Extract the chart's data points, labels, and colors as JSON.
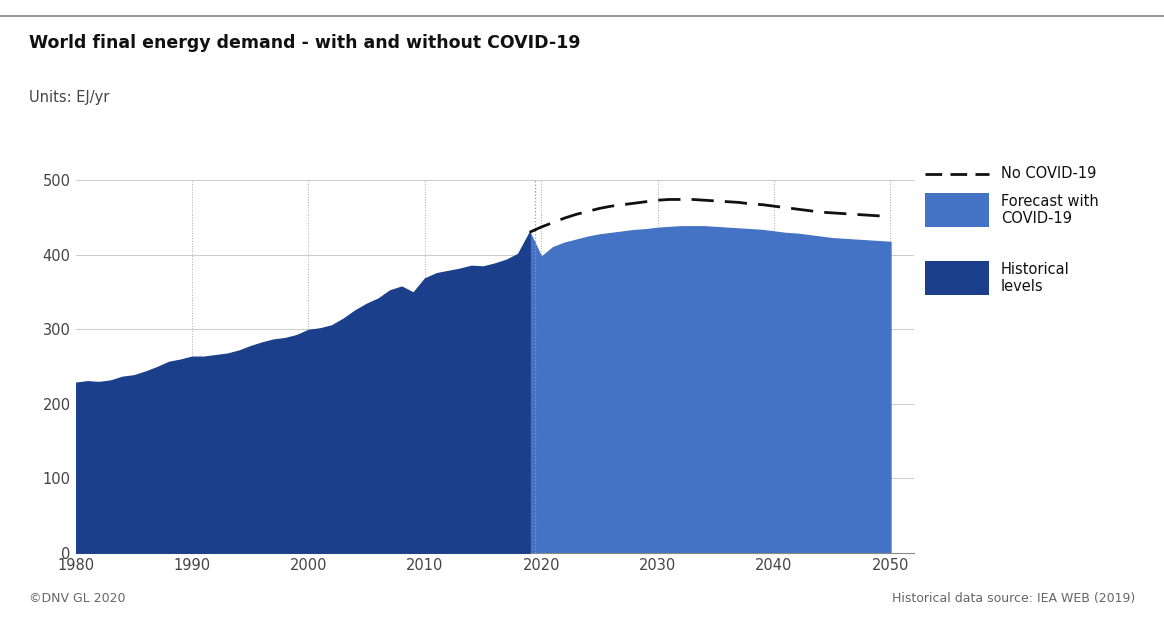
{
  "title": "World final energy demand - with and without COVID-19",
  "units_label": "Units: EJ/yr",
  "footer_left": "©DNV GL 2020",
  "footer_right": "Historical data source: IEA WEB (2019)",
  "background_color": "#ffffff",
  "hist_color": "#1b3f8b",
  "forecast_color": "#4472c4",
  "dashed_color": "#111111",
  "ylim": [
    0,
    500
  ],
  "xlim": [
    1980,
    2052
  ],
  "yticks": [
    0,
    100,
    200,
    300,
    400,
    500
  ],
  "xticks": [
    1980,
    1990,
    2000,
    2010,
    2020,
    2030,
    2040,
    2050
  ],
  "vline_x": 2019.5,
  "historical": {
    "years": [
      1980,
      1981,
      1982,
      1983,
      1984,
      1985,
      1986,
      1987,
      1988,
      1989,
      1990,
      1991,
      1992,
      1993,
      1994,
      1995,
      1996,
      1997,
      1998,
      1999,
      2000,
      2001,
      2002,
      2003,
      2004,
      2005,
      2006,
      2007,
      2008,
      2009,
      2010,
      2011,
      2012,
      2013,
      2014,
      2015,
      2016,
      2017,
      2018,
      2019
    ],
    "values": [
      228,
      230,
      229,
      231,
      236,
      238,
      243,
      249,
      256,
      259,
      263,
      263,
      265,
      267,
      271,
      277,
      282,
      286,
      288,
      292,
      299,
      301,
      305,
      314,
      325,
      334,
      341,
      352,
      357,
      349,
      368,
      375,
      378,
      381,
      385,
      384,
      388,
      393,
      401,
      430
    ]
  },
  "forecast_covid": {
    "years": [
      2019,
      2020,
      2021,
      2022,
      2023,
      2024,
      2025,
      2026,
      2027,
      2028,
      2029,
      2030,
      2031,
      2032,
      2033,
      2034,
      2035,
      2036,
      2037,
      2038,
      2039,
      2040,
      2041,
      2042,
      2043,
      2044,
      2045,
      2046,
      2047,
      2048,
      2049,
      2050
    ],
    "values": [
      430,
      397,
      410,
      416,
      420,
      424,
      427,
      429,
      431,
      433,
      434,
      436,
      437,
      438,
      438,
      438,
      437,
      436,
      435,
      434,
      433,
      431,
      429,
      428,
      426,
      424,
      422,
      421,
      420,
      419,
      418,
      417
    ]
  },
  "no_covid": {
    "years": [
      2019,
      2020,
      2021,
      2022,
      2023,
      2024,
      2025,
      2026,
      2027,
      2028,
      2029,
      2030,
      2031,
      2032,
      2033,
      2034,
      2035,
      2036,
      2037,
      2038,
      2039,
      2040,
      2041,
      2042,
      2043,
      2044,
      2045,
      2046,
      2047,
      2048,
      2049,
      2050
    ],
    "values": [
      430,
      437,
      443,
      449,
      454,
      458,
      462,
      465,
      467,
      469,
      471,
      473,
      474,
      474,
      474,
      473,
      472,
      471,
      470,
      468,
      467,
      465,
      463,
      461,
      459,
      457,
      456,
      455,
      454,
      453,
      452,
      451
    ]
  },
  "legend_labels": [
    "No COVID-19",
    "Forecast with\nCOVID-19",
    "Historical\nlevels"
  ]
}
